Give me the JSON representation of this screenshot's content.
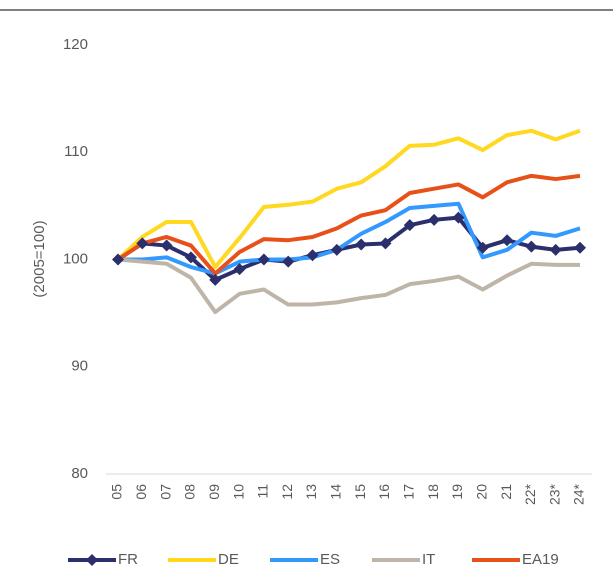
{
  "chart_data": {
    "type": "line",
    "ylabel": "(2005=100)",
    "categories": [
      "05",
      "06",
      "07",
      "08",
      "09",
      "10",
      "11",
      "12",
      "13",
      "14",
      "15",
      "16",
      "17",
      "18",
      "19",
      "20",
      "21",
      "22*",
      "23*",
      "24*"
    ],
    "series": [
      {
        "name": "FR",
        "color": "#2b2f6b",
        "marker": "diamond",
        "values": [
          100,
          101.5,
          101.3,
          100.2,
          98.1,
          99.1,
          100,
          99.8,
          100.4,
          100.9,
          101.4,
          101.5,
          103.2,
          103.7,
          103.9,
          101.1,
          101.8,
          101.2,
          100.9,
          101.1
        ]
      },
      {
        "name": "DE",
        "color": "#ffd81f",
        "values": [
          100,
          102.1,
          103.5,
          103.5,
          99.3,
          102.0,
          104.9,
          105.1,
          105.4,
          106.6,
          107.2,
          108.7,
          110.6,
          110.7,
          111.3,
          110.2,
          111.6,
          112.0,
          111.2,
          112.0
        ]
      },
      {
        "name": "ES",
        "color": "#3399ff",
        "values": [
          100,
          100,
          100.2,
          99.3,
          98.7,
          99.8,
          100,
          100,
          100.2,
          100.9,
          102.4,
          103.5,
          104.8,
          105.0,
          105.2,
          100.2,
          100.9,
          102.5,
          102.2,
          102.9
        ]
      },
      {
        "name": "IT",
        "color": "#bfb4a8",
        "values": [
          100,
          99.8,
          99.6,
          98.3,
          95.1,
          96.8,
          97.2,
          95.8,
          95.8,
          96.0,
          96.4,
          96.7,
          97.7,
          98.0,
          98.4,
          97.2,
          98.5,
          99.6,
          99.5,
          99.5
        ]
      },
      {
        "name": "EA19",
        "color": "#e8501a",
        "values": [
          100,
          101.5,
          102.1,
          101.3,
          98.7,
          100.7,
          101.9,
          101.8,
          102.1,
          102.9,
          104.1,
          104.6,
          106.2,
          106.6,
          107.0,
          105.8,
          107.2,
          107.8,
          107.5,
          107.8
        ]
      }
    ],
    "ylim": [
      80,
      120
    ],
    "yticks": [
      80,
      90,
      100,
      110,
      120
    ],
    "grid": false,
    "legend": "bottom"
  }
}
